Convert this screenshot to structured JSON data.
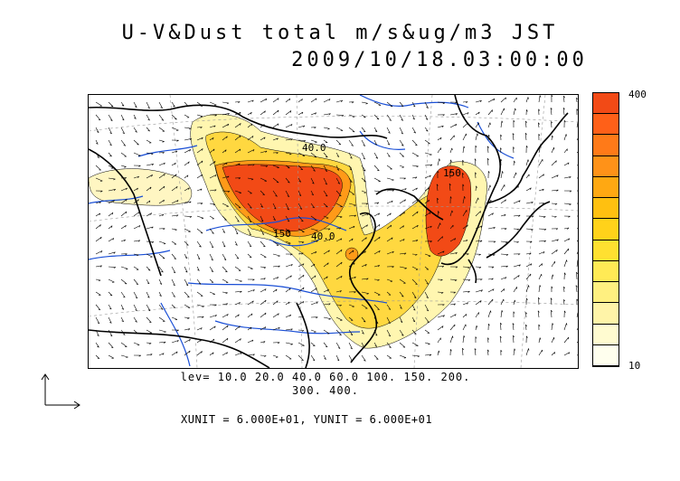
{
  "title": {
    "line1": "U-V&Dust total m/s&ug/m3 JST",
    "line2": "2009/10/18.03:00:00"
  },
  "colorbar": {
    "max_label": "400",
    "min_label": "10",
    "colors": [
      "#ffffee",
      "#fffbd0",
      "#fff4a8",
      "#fff080",
      "#ffea55",
      "#ffe030",
      "#ffd21a",
      "#ffc010",
      "#ffa812",
      "#ff9218",
      "#ff7a18",
      "#ff6018",
      "#f24a16"
    ]
  },
  "contour_labels": {
    "north": "40.0",
    "west_south": "150",
    "mid": "40.0",
    "east": "150"
  },
  "legend": {
    "line1": "lev= 10.0 20.0 40.0 60.0 100. 150. 200.",
    "line2": "300. 400."
  },
  "units_text": "XUNIT = 6.000E+01, YUNIT = 6.000E+01",
  "colors": {
    "high": "#f24a16",
    "mid": "#ffcc22",
    "low": "#fff6b0",
    "coast": "#000000",
    "river": "#1a4fd6"
  }
}
